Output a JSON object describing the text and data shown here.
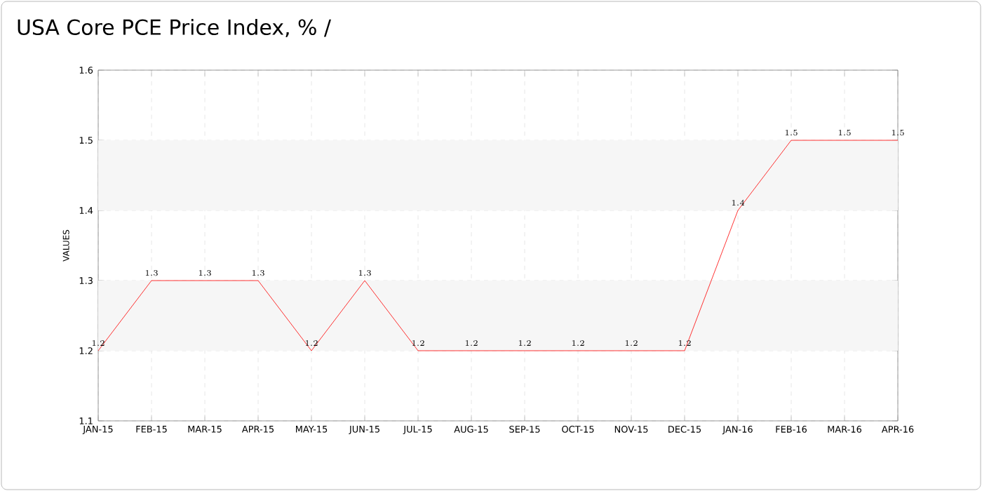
{
  "chart_data": {
    "type": "line",
    "title": "USA Core PCE Price Index, % /",
    "ylabel": "VALUES",
    "categories": [
      "JAN-15",
      "FEB-15",
      "MAR-15",
      "APR-15",
      "MAY-15",
      "JUN-15",
      "JUL-15",
      "AUG-15",
      "SEP-15",
      "OCT-15",
      "NOV-15",
      "DEC-15",
      "JAN-16",
      "FEB-16",
      "MAR-16",
      "APR-16"
    ],
    "series": [
      {
        "color": "#ff0000",
        "values": [
          1.2,
          1.3,
          1.3,
          1.3,
          1.2,
          1.3,
          1.2,
          1.2,
          1.2,
          1.2,
          1.2,
          1.2,
          1.4,
          1.5,
          1.5,
          1.5
        ]
      }
    ],
    "ylim": [
      1.1,
      1.6
    ],
    "yticks": [
      1.1,
      1.2,
      1.3,
      1.4,
      1.5,
      1.6
    ],
    "bands": [
      {
        "axis": "y",
        "from": 1.2,
        "to": 1.3,
        "color": "#f6f6f6"
      },
      {
        "axis": "y",
        "from": 1.4,
        "to": 1.5,
        "color": "#f6f6f6"
      }
    ],
    "grid": true,
    "data_labels": true,
    "marker": "none",
    "line_style": "solid"
  }
}
